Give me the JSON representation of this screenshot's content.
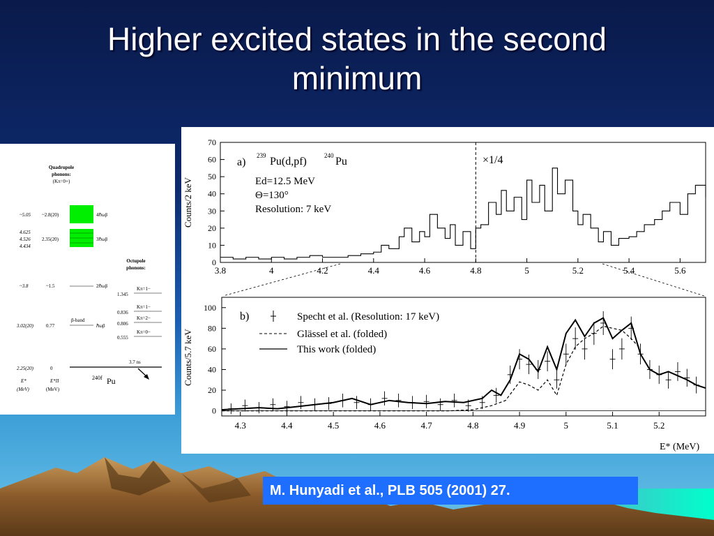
{
  "title_line1": "Higher excited states in the second",
  "title_line2": "minimum",
  "citation": "M. Hunyadi et al., PLB 505  (2001) 27.",
  "level_scheme": {
    "quadrupole_header": [
      "Quadrupole",
      "phonons:",
      "(Kπ=0+)"
    ],
    "octupole_header": [
      "Octupole",
      "phonons:"
    ],
    "rows": [
      {
        "e": "~5.05",
        "e2": "~2.8(20)",
        "label": "4ℏωβ"
      },
      {
        "e": "4.625",
        "e2": "",
        "label": ""
      },
      {
        "e": "4.526",
        "e2": "2.35(20)",
        "label": "3ℏωβ"
      },
      {
        "e": "4.434",
        "e2": "",
        "label": ""
      },
      {
        "e": "~3.8",
        "e2": "~1.5",
        "label": "2ℏωβ"
      },
      {
        "e": "3.02(20)",
        "e2": "0.77",
        "label": "ℏωβ"
      },
      {
        "e": "2.25(20)",
        "e2": "0",
        "label": ""
      }
    ],
    "beta_band": "β-band",
    "octupole_levels": [
      {
        "e": "1.345",
        "k": "Kπ=1−"
      },
      {
        "e": "0.836",
        "k": "Kπ=1−"
      },
      {
        "e": "0.806",
        "k": "Kπ=2−"
      },
      {
        "e": "0.555",
        "k": "Kπ=0−"
      }
    ],
    "lifetime": "3.7 ns",
    "nucleus_mass": "240f",
    "nucleus_symbol": "Pu",
    "axis_e": "E*",
    "axis_e_unit": "(MeV)",
    "axis_e2": "E*II",
    "axis_e2_unit": "(MeV)"
  },
  "chart_data": [
    {
      "type": "line",
      "panel": "a)",
      "ylabel": "Counts/2 keV",
      "x_ticks": [
        "3.8",
        "4",
        "4.2",
        "4.4",
        "4.6",
        "4.8",
        "5",
        "5.2",
        "5.4",
        "5.6"
      ],
      "y_ticks": [
        "0",
        "10",
        "20",
        "30",
        "40",
        "50",
        "60",
        "70"
      ],
      "xlim": [
        3.8,
        5.7
      ],
      "ylim": [
        0,
        70
      ],
      "reaction_pre": "239",
      "reaction_mid": "Pu(d,pf)",
      "reaction_post_mass": "240",
      "reaction_post": "Pu",
      "energy_label": "Ed=12.5 MeV",
      "angle_label": "Θ=130°",
      "resolution_label": "Resolution: 7 keV",
      "scale_note": "×1/4",
      "scale_boundary_x": 4.8,
      "series": [
        {
          "x": [
            3.8,
            3.85,
            3.9,
            3.95,
            4.0,
            4.05,
            4.1,
            4.15,
            4.2,
            4.25,
            4.3,
            4.35,
            4.4,
            4.43,
            4.46,
            4.5,
            4.52,
            4.55,
            4.58,
            4.6,
            4.62,
            4.65,
            4.68,
            4.7,
            4.72,
            4.75,
            4.78,
            4.8,
            4.82,
            4.85,
            4.88,
            4.9,
            4.92,
            4.95,
            4.98,
            5.0,
            5.02,
            5.05,
            5.07,
            5.1,
            5.12,
            5.15,
            5.18,
            5.2,
            5.22,
            5.25,
            5.28,
            5.3,
            5.33,
            5.36,
            5.4,
            5.43,
            5.46,
            5.5,
            5.53,
            5.56,
            5.6,
            5.63,
            5.66,
            5.7
          ],
          "y": [
            3,
            2,
            3,
            2,
            3,
            2,
            3,
            4,
            3,
            3,
            4,
            5,
            6,
            10,
            8,
            15,
            20,
            12,
            18,
            15,
            28,
            20,
            14,
            22,
            10,
            18,
            8,
            20,
            22,
            35,
            28,
            42,
            30,
            38,
            25,
            48,
            35,
            45,
            30,
            55,
            40,
            48,
            30,
            22,
            28,
            20,
            12,
            18,
            10,
            14,
            15,
            18,
            22,
            25,
            30,
            35,
            28,
            40,
            45,
            38
          ]
        }
      ]
    },
    {
      "type": "line",
      "panel": "b)",
      "ylabel": "Counts/5.7 keV",
      "xlabel": "E* (MeV)",
      "x_ticks": [
        "4.3",
        "4.4",
        "4.5",
        "4.6",
        "4.7",
        "4.8",
        "4.9",
        "5",
        "5.1",
        "5.2"
      ],
      "y_ticks": [
        "0",
        "20",
        "40",
        "60",
        "80",
        "100"
      ],
      "xlim": [
        4.26,
        5.3
      ],
      "ylim": [
        -5,
        110
      ],
      "legend": [
        "Specht et al. (Resolution: 17 keV)",
        "Glässel et al. (folded)",
        "This work (folded)"
      ],
      "series": [
        {
          "name": "Specht et al. (Resolution: 17 keV)",
          "x": [
            4.28,
            4.31,
            4.34,
            4.37,
            4.4,
            4.43,
            4.46,
            4.49,
            4.52,
            4.55,
            4.58,
            4.61,
            4.64,
            4.67,
            4.7,
            4.73,
            4.76,
            4.79,
            4.82,
            4.85,
            4.88,
            4.9,
            4.92,
            4.94,
            4.96,
            4.98,
            5.0,
            5.02,
            5.04,
            5.06,
            5.08,
            5.1,
            5.12,
            5.14,
            5.16,
            5.18,
            5.2,
            5.22,
            5.24,
            5.26,
            5.28
          ],
          "y": [
            2,
            5,
            3,
            6,
            4,
            8,
            6,
            7,
            10,
            8,
            6,
            12,
            10,
            8,
            9,
            6,
            10,
            5,
            8,
            15,
            35,
            50,
            45,
            40,
            48,
            30,
            55,
            70,
            60,
            75,
            85,
            50,
            60,
            80,
            55,
            40,
            35,
            30,
            38,
            32,
            25
          ]
        },
        {
          "name": "Glässel et al. (folded)",
          "x": [
            4.26,
            4.35,
            4.45,
            4.55,
            4.65,
            4.75,
            4.8,
            4.84,
            4.87,
            4.9,
            4.92,
            4.94,
            4.96,
            4.98,
            5.0,
            5.02,
            5.04,
            5.06,
            5.08,
            5.1,
            5.12,
            5.14,
            5.16
          ],
          "y": [
            0,
            0,
            0,
            0,
            0,
            0,
            1,
            5,
            10,
            28,
            25,
            20,
            30,
            15,
            45,
            62,
            70,
            75,
            82,
            80,
            78,
            70,
            60
          ]
        },
        {
          "name": "This work (folded)",
          "x": [
            4.26,
            4.3,
            4.34,
            4.38,
            4.42,
            4.46,
            4.5,
            4.54,
            4.58,
            4.62,
            4.66,
            4.7,
            4.74,
            4.78,
            4.82,
            4.84,
            4.86,
            4.88,
            4.9,
            4.92,
            4.94,
            4.96,
            4.98,
            5.0,
            5.02,
            5.04,
            5.06,
            5.08,
            5.1,
            5.12,
            5.14,
            5.16,
            5.18,
            5.2,
            5.22,
            5.24,
            5.26,
            5.28,
            5.3
          ],
          "y": [
            1,
            2,
            3,
            2,
            4,
            6,
            8,
            12,
            6,
            10,
            8,
            7,
            9,
            8,
            12,
            20,
            15,
            30,
            55,
            50,
            38,
            62,
            40,
            75,
            88,
            72,
            85,
            90,
            70,
            78,
            85,
            55,
            40,
            35,
            38,
            34,
            30,
            25,
            22
          ]
        }
      ]
    }
  ]
}
